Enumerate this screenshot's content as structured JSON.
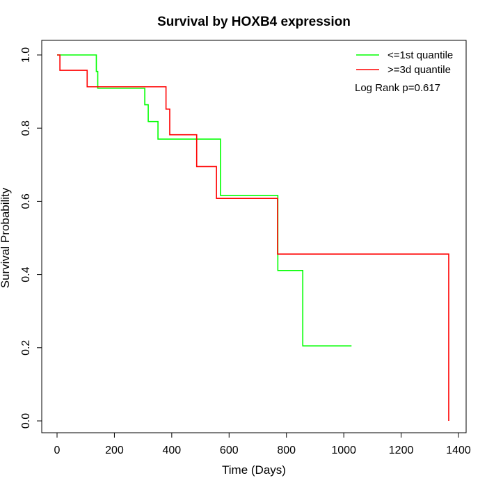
{
  "chart_data": {
    "type": "line",
    "subtype": "kaplan-meier step",
    "title": "Survival by HOXB4 expression",
    "xlabel": "Time (Days)",
    "ylabel": "Survival Probability",
    "xlim": [
      0,
      1400
    ],
    "ylim": [
      0,
      1
    ],
    "x_ticks": [
      0,
      200,
      400,
      600,
      800,
      1000,
      1200,
      1400
    ],
    "x_tick_labels": [
      "0",
      "200",
      "400",
      "600",
      "800",
      "1000",
      "1200",
      "1400"
    ],
    "y_ticks": [
      0,
      0.2,
      0.4,
      0.6,
      0.8,
      1.0
    ],
    "y_tick_labels": [
      "0.0",
      "0.2",
      "0.4",
      "0.6",
      "0.8",
      "1.0"
    ],
    "grid": false,
    "legend_position": "top-right",
    "annotation": "Log Rank p=0.617",
    "series": [
      {
        "name": "<=1st quantile",
        "color": "#00ff00",
        "steps": [
          {
            "x": 0,
            "y": 1.0
          },
          {
            "x": 137,
            "y": 0.955
          },
          {
            "x": 142,
            "y": 0.909
          },
          {
            "x": 306,
            "y": 0.864
          },
          {
            "x": 318,
            "y": 0.818
          },
          {
            "x": 352,
            "y": 0.77
          },
          {
            "x": 570,
            "y": 0.616
          },
          {
            "x": 770,
            "y": 0.411
          },
          {
            "x": 857,
            "y": 0.205
          },
          {
            "x": 1027,
            "y": 0.205
          }
        ]
      },
      {
        "name": ">=3d quantile",
        "color": "#ff0000",
        "steps": [
          {
            "x": 0,
            "y": 1.0
          },
          {
            "x": 10,
            "y": 0.958
          },
          {
            "x": 105,
            "y": 0.913
          },
          {
            "x": 380,
            "y": 0.852
          },
          {
            "x": 393,
            "y": 0.782
          },
          {
            "x": 487,
            "y": 0.695
          },
          {
            "x": 556,
            "y": 0.608
          },
          {
            "x": 769,
            "y": 0.456
          },
          {
            "x": 1366,
            "y": 0.0
          }
        ]
      }
    ]
  }
}
